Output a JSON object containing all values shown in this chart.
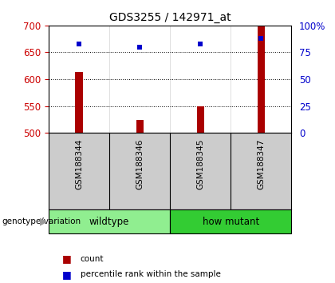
{
  "title": "GDS3255 / 142971_at",
  "samples": [
    "GSM188344",
    "GSM188346",
    "GSM188345",
    "GSM188347"
  ],
  "counts": [
    614,
    524,
    550,
    698
  ],
  "percentile_ranks": [
    83,
    80,
    83,
    88
  ],
  "ymin": 500,
  "ymax": 700,
  "yticks": [
    500,
    550,
    600,
    650,
    700
  ],
  "pct_min": 0,
  "pct_max": 100,
  "pct_ticks": [
    0,
    25,
    50,
    75,
    100
  ],
  "pct_labels": [
    "0",
    "25",
    "50",
    "75",
    "100%"
  ],
  "groups": [
    {
      "label": "wildtype",
      "indices": [
        0,
        1
      ],
      "color": "#90EE90"
    },
    {
      "label": "how mutant",
      "indices": [
        2,
        3
      ],
      "color": "#33CC33"
    }
  ],
  "bar_color": "#AA0000",
  "marker_color": "#0000CC",
  "bar_width": 0.12,
  "title_fontsize": 10,
  "axis_label_color_left": "#CC0000",
  "axis_label_color_right": "#0000CC",
  "background_color": "#ffffff",
  "plot_bg_color": "#ffffff",
  "sample_area_color": "#cccccc",
  "group_arrow_color": "#999999"
}
